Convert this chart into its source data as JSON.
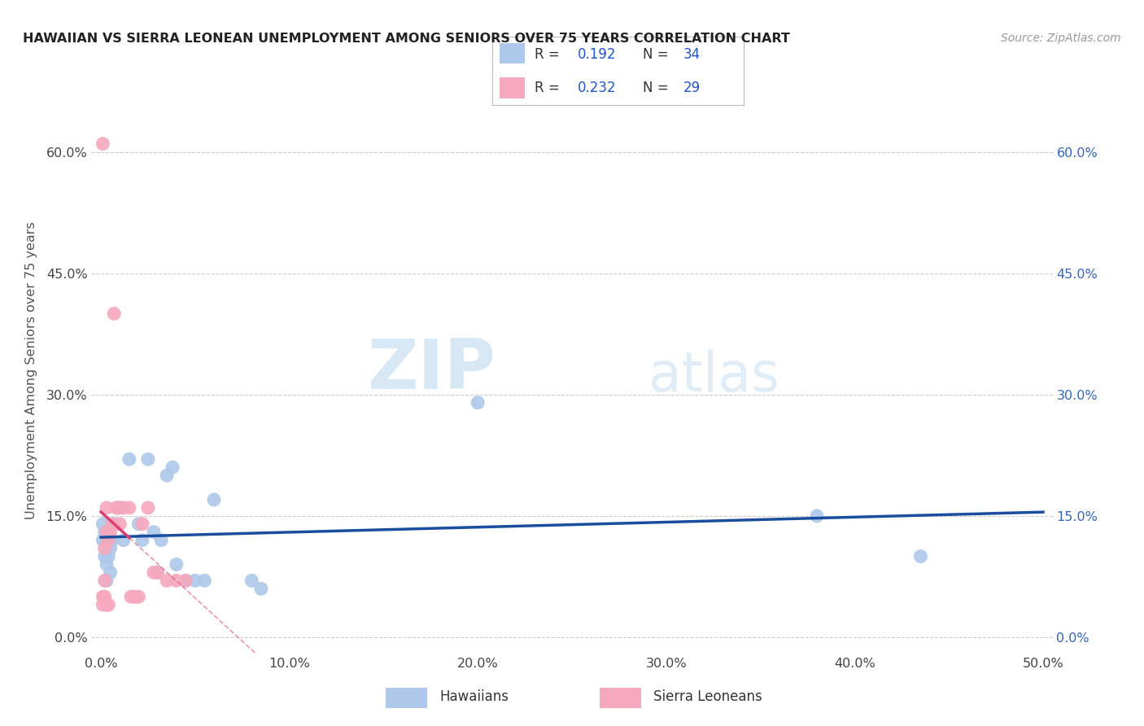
{
  "title": "HAWAIIAN VS SIERRA LEONEAN UNEMPLOYMENT AMONG SENIORS OVER 75 YEARS CORRELATION CHART",
  "source": "Source: ZipAtlas.com",
  "ylabel": "Unemployment Among Seniors over 75 years",
  "xlim": [
    -0.005,
    0.505
  ],
  "ylim": [
    -0.02,
    0.68
  ],
  "hawaiian_x": [
    0.001,
    0.001,
    0.002,
    0.002,
    0.003,
    0.003,
    0.003,
    0.004,
    0.004,
    0.005,
    0.005,
    0.006,
    0.007,
    0.01,
    0.012,
    0.015,
    0.02,
    0.022,
    0.025,
    0.028,
    0.03,
    0.032,
    0.035,
    0.038,
    0.04,
    0.045,
    0.05,
    0.055,
    0.06,
    0.08,
    0.085,
    0.2,
    0.38,
    0.435
  ],
  "hawaiian_y": [
    0.12,
    0.14,
    0.1,
    0.13,
    0.09,
    0.07,
    0.12,
    0.13,
    0.1,
    0.11,
    0.08,
    0.12,
    0.14,
    0.16,
    0.12,
    0.22,
    0.14,
    0.12,
    0.22,
    0.13,
    0.08,
    0.12,
    0.2,
    0.21,
    0.09,
    0.07,
    0.07,
    0.07,
    0.17,
    0.07,
    0.06,
    0.29,
    0.15,
    0.1
  ],
  "sierra_x": [
    0.001,
    0.001,
    0.001,
    0.002,
    0.002,
    0.002,
    0.003,
    0.003,
    0.003,
    0.004,
    0.004,
    0.005,
    0.006,
    0.007,
    0.008,
    0.009,
    0.01,
    0.012,
    0.015,
    0.016,
    0.018,
    0.02,
    0.022,
    0.025,
    0.028,
    0.03,
    0.035,
    0.04,
    0.045
  ],
  "sierra_y": [
    0.61,
    0.05,
    0.04,
    0.07,
    0.11,
    0.05,
    0.13,
    0.16,
    0.04,
    0.04,
    0.12,
    0.13,
    0.14,
    0.4,
    0.16,
    0.16,
    0.14,
    0.16,
    0.16,
    0.05,
    0.05,
    0.05,
    0.14,
    0.16,
    0.08,
    0.08,
    0.07,
    0.07,
    0.07
  ],
  "R_hawaiian": 0.192,
  "N_hawaiian": 34,
  "R_sierra": 0.232,
  "N_sierra": 29,
  "color_hawaiian": "#adc8e8",
  "color_sierra": "#f5a8be",
  "color_line_hawaiian": "#1a4d9e",
  "color_line_sierra": "#d94070",
  "watermark_zip": "ZIP",
  "watermark_atlas": "atlas",
  "background_color": "#ffffff",
  "grid_color": "#cccccc",
  "xtick_vals": [
    0.0,
    0.1,
    0.2,
    0.3,
    0.4,
    0.5
  ],
  "ytick_vals": [
    0.0,
    0.15,
    0.3,
    0.45,
    0.6
  ]
}
